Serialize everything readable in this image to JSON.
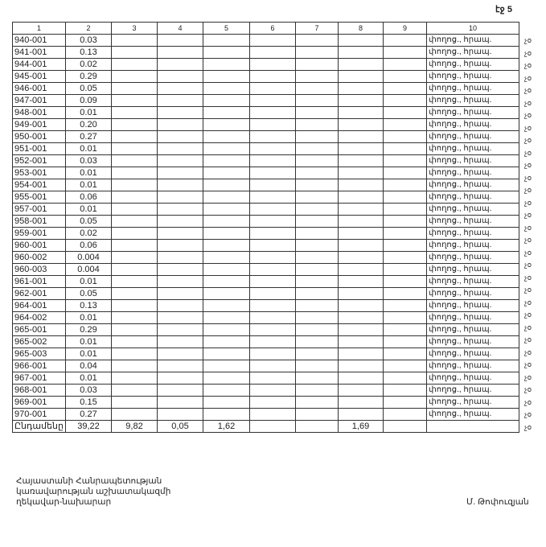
{
  "page_number": "էջ 5",
  "table": {
    "headers": [
      "1",
      "2",
      "3",
      "4",
      "5",
      "6",
      "7",
      "8",
      "9",
      "10"
    ],
    "rows": [
      {
        "code": "940-001",
        "value": "0.03",
        "desc": "փողոց., հրապ."
      },
      {
        "code": "941-001",
        "value": "0.13",
        "desc": "փողոց., հրապ."
      },
      {
        "code": "944-001",
        "value": "0.02",
        "desc": "փողոց., հրապ."
      },
      {
        "code": "945-001",
        "value": "0.29",
        "desc": "փողոց., հրապ."
      },
      {
        "code": "946-001",
        "value": "0.05",
        "desc": "փողոց., հրապ."
      },
      {
        "code": "947-001",
        "value": "0.09",
        "desc": "փողոց., հրապ."
      },
      {
        "code": "948-001",
        "value": "0.01",
        "desc": "փողոց., հրապ."
      },
      {
        "code": "949-001",
        "value": "0.20",
        "desc": "փողոց., հրապ."
      },
      {
        "code": "950-001",
        "value": "0.27",
        "desc": "փողոց., հրապ."
      },
      {
        "code": "951-001",
        "value": "0.01",
        "desc": "փողոց., հրապ."
      },
      {
        "code": "952-001",
        "value": "0.03",
        "desc": "փողոց., հրապ."
      },
      {
        "code": "953-001",
        "value": "0.01",
        "desc": "փողոց., հրապ."
      },
      {
        "code": "954-001",
        "value": "0.01",
        "desc": "փողոց., հրապ."
      },
      {
        "code": "955-001",
        "value": "0.06",
        "desc": "փողոց., հրապ."
      },
      {
        "code": "957-001",
        "value": "0.01",
        "desc": "փողոց., հրապ."
      },
      {
        "code": "958-001",
        "value": "0.05",
        "desc": "փողոց., հրապ."
      },
      {
        "code": "959-001",
        "value": "0.02",
        "desc": "փողոց., հրապ."
      },
      {
        "code": "960-001",
        "value": "0.06",
        "desc": "փողոց., հրապ."
      },
      {
        "code": "960-002",
        "value": "0.004",
        "desc": "փողոց., հրապ."
      },
      {
        "code": "960-003",
        "value": "0.004",
        "desc": "փողոց., հրապ."
      },
      {
        "code": "961-001",
        "value": "0.01",
        "desc": "փողոց., հրապ."
      },
      {
        "code": "962-001",
        "value": "0.05",
        "desc": "փողոց., հրապ."
      },
      {
        "code": "964-001",
        "value": "0.13",
        "desc": "փողոց., հրապ."
      },
      {
        "code": "964-002",
        "value": "0.01",
        "desc": "փողոց., հրապ."
      },
      {
        "code": "965-001",
        "value": "0.29",
        "desc": "փողոց., հրապ."
      },
      {
        "code": "965-002",
        "value": "0.01",
        "desc": "փողոց., հրապ."
      },
      {
        "code": "965-003",
        "value": "0.01",
        "desc": "փողոց., հրապ."
      },
      {
        "code": "966-001",
        "value": "0.04",
        "desc": "փողոց., հրապ."
      },
      {
        "code": "967-001",
        "value": "0.01",
        "desc": "փողոց., հրապ."
      },
      {
        "code": "968-001",
        "value": "0.03",
        "desc": "փողոց., հրապ."
      },
      {
        "code": "969-001",
        "value": "0.15",
        "desc": "փողոց., հրապ."
      },
      {
        "code": "970-001",
        "value": "0.27",
        "desc": "փողոց., հրապ."
      }
    ],
    "row_mark": "չօ",
    "total": [
      "Ընդամենը",
      "39,22",
      "9,82",
      "0,05",
      "1,62",
      "",
      "",
      "1,69",
      "",
      ""
    ]
  },
  "footer": {
    "lines": [
      "Հայաստանի Հանրապետության",
      "կառավարության աշխատակազմի",
      "ղեկավար-նախարար"
    ],
    "signatory": "Մ. Թոփուզյան"
  }
}
